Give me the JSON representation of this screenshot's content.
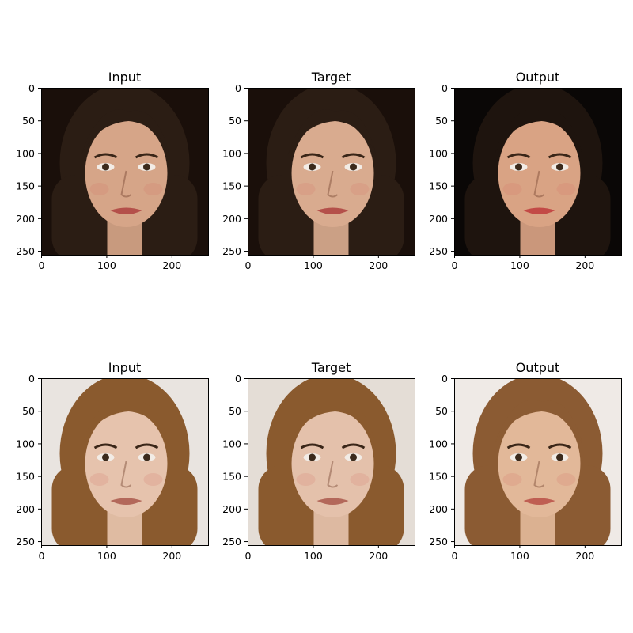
{
  "figure": {
    "panels": [
      {
        "title": "Input",
        "hair": "#2b1d14",
        "background": "#1a0f0a",
        "skin": "#d6a588",
        "lip": "#b4504a"
      },
      {
        "title": "Target",
        "hair": "#2b1d14",
        "background": "#1a0f0a",
        "skin": "#d9ab8f",
        "lip": "#b4504a"
      },
      {
        "title": "Output",
        "hair": "#1e140e",
        "background": "#0a0706",
        "skin": "#d9a384",
        "lip": "#c34a46"
      },
      {
        "title": "Input",
        "hair": "#8a5a2e",
        "background": "#e9e4e0",
        "skin": "#e6c3ad",
        "lip": "#b3685a"
      },
      {
        "title": "Target",
        "hair": "#8a5a2e",
        "background": "#e4ddd6",
        "skin": "#e4c1ab",
        "lip": "#b3685a"
      },
      {
        "title": "Output",
        "hair": "#8b5b33",
        "background": "#efeae6",
        "skin": "#e2b899",
        "lip": "#bf5e52"
      }
    ],
    "axes": {
      "y_ticks": [
        "0",
        "50",
        "100",
        "150",
        "200",
        "250"
      ],
      "x_ticks": [
        "0",
        "100",
        "200"
      ],
      "y_tick_values": [
        0,
        50,
        100,
        150,
        200,
        250
      ],
      "x_tick_values": [
        0,
        100,
        200
      ],
      "range": [
        0,
        256
      ]
    }
  }
}
